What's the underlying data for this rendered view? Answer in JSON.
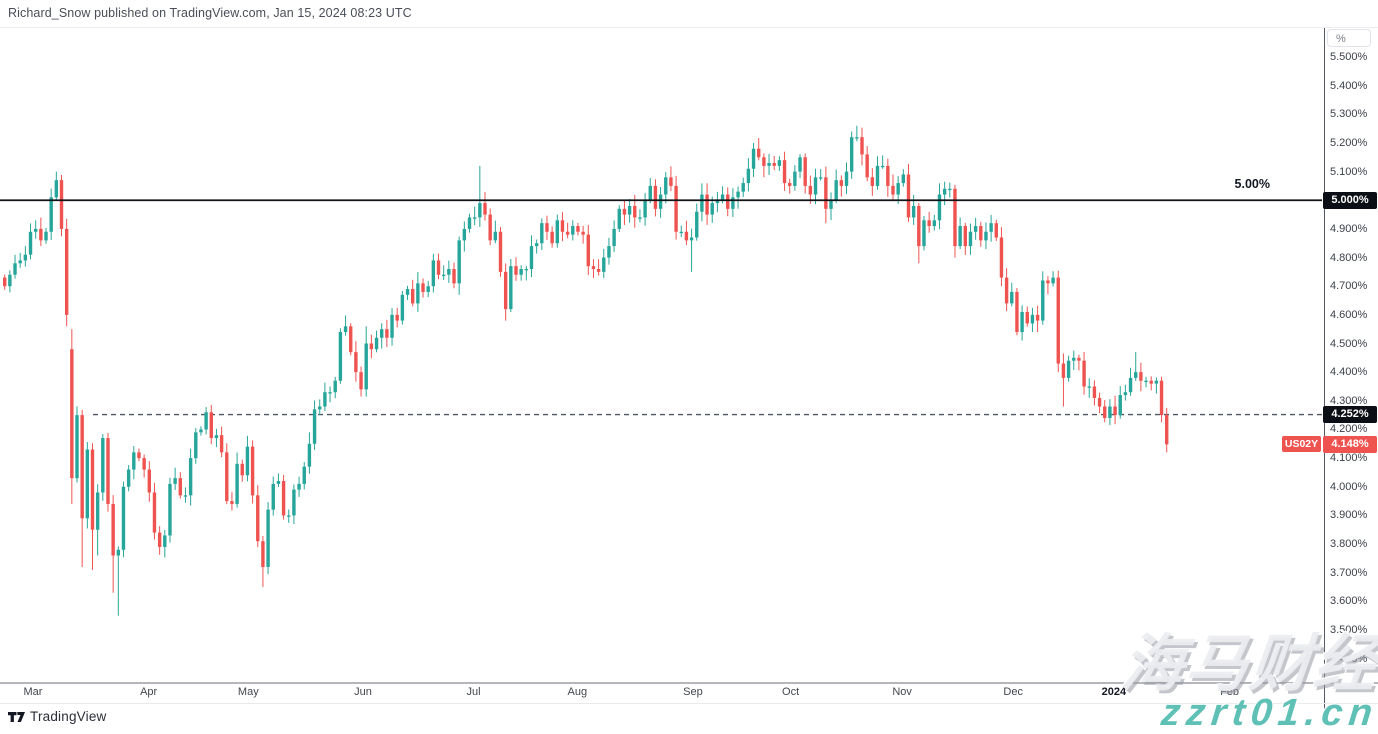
{
  "header": {
    "byline": "Richard_Snow published on TradingView.com, Jan 15, 2024 08:23 UTC"
  },
  "footer": {
    "brand": "TradingView"
  },
  "watermark": {
    "line1": "海马财经",
    "line2": "zzrt01.cn"
  },
  "price_axis": {
    "unit_button": "%",
    "tick_labels": [
      "5.500%",
      "5.400%",
      "5.300%",
      "5.200%",
      "5.100%",
      "5.000%",
      "4.900%",
      "4.800%",
      "4.700%",
      "4.600%",
      "4.500%",
      "4.400%",
      "4.300%",
      "4.200%",
      "4.100%",
      "4.000%",
      "3.900%",
      "3.800%",
      "3.700%",
      "3.600%",
      "3.500%",
      "3.400%"
    ]
  },
  "time_axis": {
    "ticks": [
      {
        "label": "Mar",
        "i": 5.8
      },
      {
        "label": "Apr",
        "i": 28.2
      },
      {
        "label": "May",
        "i": 47.5
      },
      {
        "label": "Jun",
        "i": 69.7
      },
      {
        "label": "Jul",
        "i": 91.1
      },
      {
        "label": "Aug",
        "i": 111.2
      },
      {
        "label": "Sep",
        "i": 133.6
      },
      {
        "label": "Oct",
        "i": 152.5
      },
      {
        "label": "Nov",
        "i": 174.1
      },
      {
        "label": "Dec",
        "i": 195.6
      },
      {
        "label": "2024",
        "i": 215.1,
        "year": true
      },
      {
        "label": "Feb",
        "i": 237.5
      }
    ]
  },
  "price_labels": {
    "level": {
      "text": "5.000%"
    },
    "prev_close": {
      "text": "4.252%"
    },
    "last": {
      "symbol": "US02Y",
      "text": "4.148%"
    }
  },
  "chart_data": {
    "type": "candlestick",
    "symbol": "US02Y",
    "unit": "%",
    "up_color": "#26a69a",
    "down_color": "#ef5350",
    "y_axis": {
      "top_value": 5.5,
      "bottom_value": 3.4,
      "step": 0.1,
      "grid": false
    },
    "key_levels": [
      {
        "value": 5.0,
        "label": "5.00%",
        "style": "solid"
      },
      {
        "value": 4.252,
        "label": "4.252%",
        "style": "dashed"
      }
    ],
    "last_price": 4.148,
    "closes": [
      4.7,
      4.74,
      4.78,
      4.79,
      4.81,
      4.89,
      4.9,
      4.86,
      4.89,
      5.01,
      5.07,
      4.9,
      4.6,
      4.03,
      4.25,
      3.89,
      4.13,
      3.85,
      3.98,
      4.17,
      3.94,
      3.76,
      3.78,
      4.0,
      4.06,
      4.12,
      4.1,
      4.06,
      3.98,
      3.84,
      3.79,
      3.83,
      4.01,
      4.03,
      3.97,
      3.97,
      4.1,
      4.19,
      4.2,
      4.26,
      4.17,
      4.18,
      4.12,
      3.95,
      3.94,
      4.08,
      4.04,
      4.14,
      3.97,
      3.81,
      3.72,
      3.92,
      4.01,
      4.02,
      3.9,
      3.9,
      3.99,
      4.01,
      4.07,
      4.15,
      4.27,
      4.28,
      4.33,
      4.33,
      4.37,
      4.54,
      4.56,
      4.47,
      4.4,
      4.34,
      4.5,
      4.48,
      4.52,
      4.55,
      4.52,
      4.6,
      4.58,
      4.67,
      4.69,
      4.64,
      4.71,
      4.68,
      4.7,
      4.79,
      4.74,
      4.74,
      4.76,
      4.71,
      4.86,
      4.9,
      4.94,
      4.94,
      4.99,
      4.95,
      4.86,
      4.89,
      4.75,
      4.62,
      4.77,
      4.74,
      4.76,
      4.76,
      4.84,
      4.85,
      4.92,
      4.89,
      4.85,
      4.93,
      4.89,
      4.88,
      4.91,
      4.89,
      4.88,
      4.77,
      4.76,
      4.75,
      4.8,
      4.84,
      4.9,
      4.97,
      4.95,
      4.98,
      4.94,
      4.94,
      5.0,
      5.05,
      4.97,
      5.02,
      5.08,
      5.05,
      4.89,
      4.89,
      4.86,
      4.87,
      4.96,
      5.02,
      4.95,
      4.99,
      5.0,
      5.02,
      4.97,
      5.01,
      5.03,
      5.06,
      5.11,
      5.18,
      5.15,
      5.12,
      5.13,
      5.12,
      5.14,
      5.06,
      5.05,
      5.1,
      5.15,
      5.05,
      5.02,
      5.08,
      5.08,
      4.97,
      5.0,
      5.07,
      5.05,
      5.1,
      5.22,
      5.22,
      5.16,
      5.08,
      5.05,
      5.12,
      5.12,
      5.05,
      5.02,
      5.06,
      5.09,
      4.94,
      4.98,
      4.84,
      4.93,
      4.91,
      4.93,
      5.02,
      5.04,
      5.04,
      4.84,
      4.91,
      4.84,
      4.89,
      4.91,
      4.86,
      4.89,
      4.92,
      4.87,
      4.73,
      4.64,
      4.68,
      4.54,
      4.61,
      4.57,
      4.6,
      4.58,
      4.72,
      4.71,
      4.73,
      4.43,
      4.38,
      4.44,
      4.45,
      4.44,
      4.35,
      4.35,
      4.31,
      4.28,
      4.24,
      4.28,
      4.25,
      4.32,
      4.33,
      4.38,
      4.4,
      4.37,
      4.37,
      4.36,
      4.37,
      4.25,
      4.148
    ],
    "wick_overrides": {
      "0": {
        "o": 4.73
      },
      "10": {
        "h": 5.1
      },
      "12": {
        "l": 4.56
      },
      "13": {
        "o": 4.48,
        "h": 4.55,
        "l": 3.94
      },
      "15": {
        "l": 3.72
      },
      "17": {
        "l": 3.71
      },
      "18": {
        "l": 3.76
      },
      "21": {
        "l": 3.63
      },
      "22": {
        "l": 3.55
      },
      "50": {
        "l": 3.65
      },
      "70": {
        "h": 4.56
      },
      "92": {
        "h": 5.12
      },
      "97": {
        "l": 4.58
      },
      "133": {
        "l": 4.75
      },
      "145": {
        "h": 5.2
      },
      "159": {
        "l": 4.92
      },
      "164": {
        "h": 5.24
      },
      "165": {
        "h": 5.26
      },
      "177": {
        "l": 4.78
      },
      "184": {
        "l": 4.8
      },
      "204": {
        "l": 4.4
      },
      "205": {
        "l": 4.28
      },
      "219": {
        "h": 4.47
      },
      "225": {
        "l": 4.12
      }
    }
  }
}
